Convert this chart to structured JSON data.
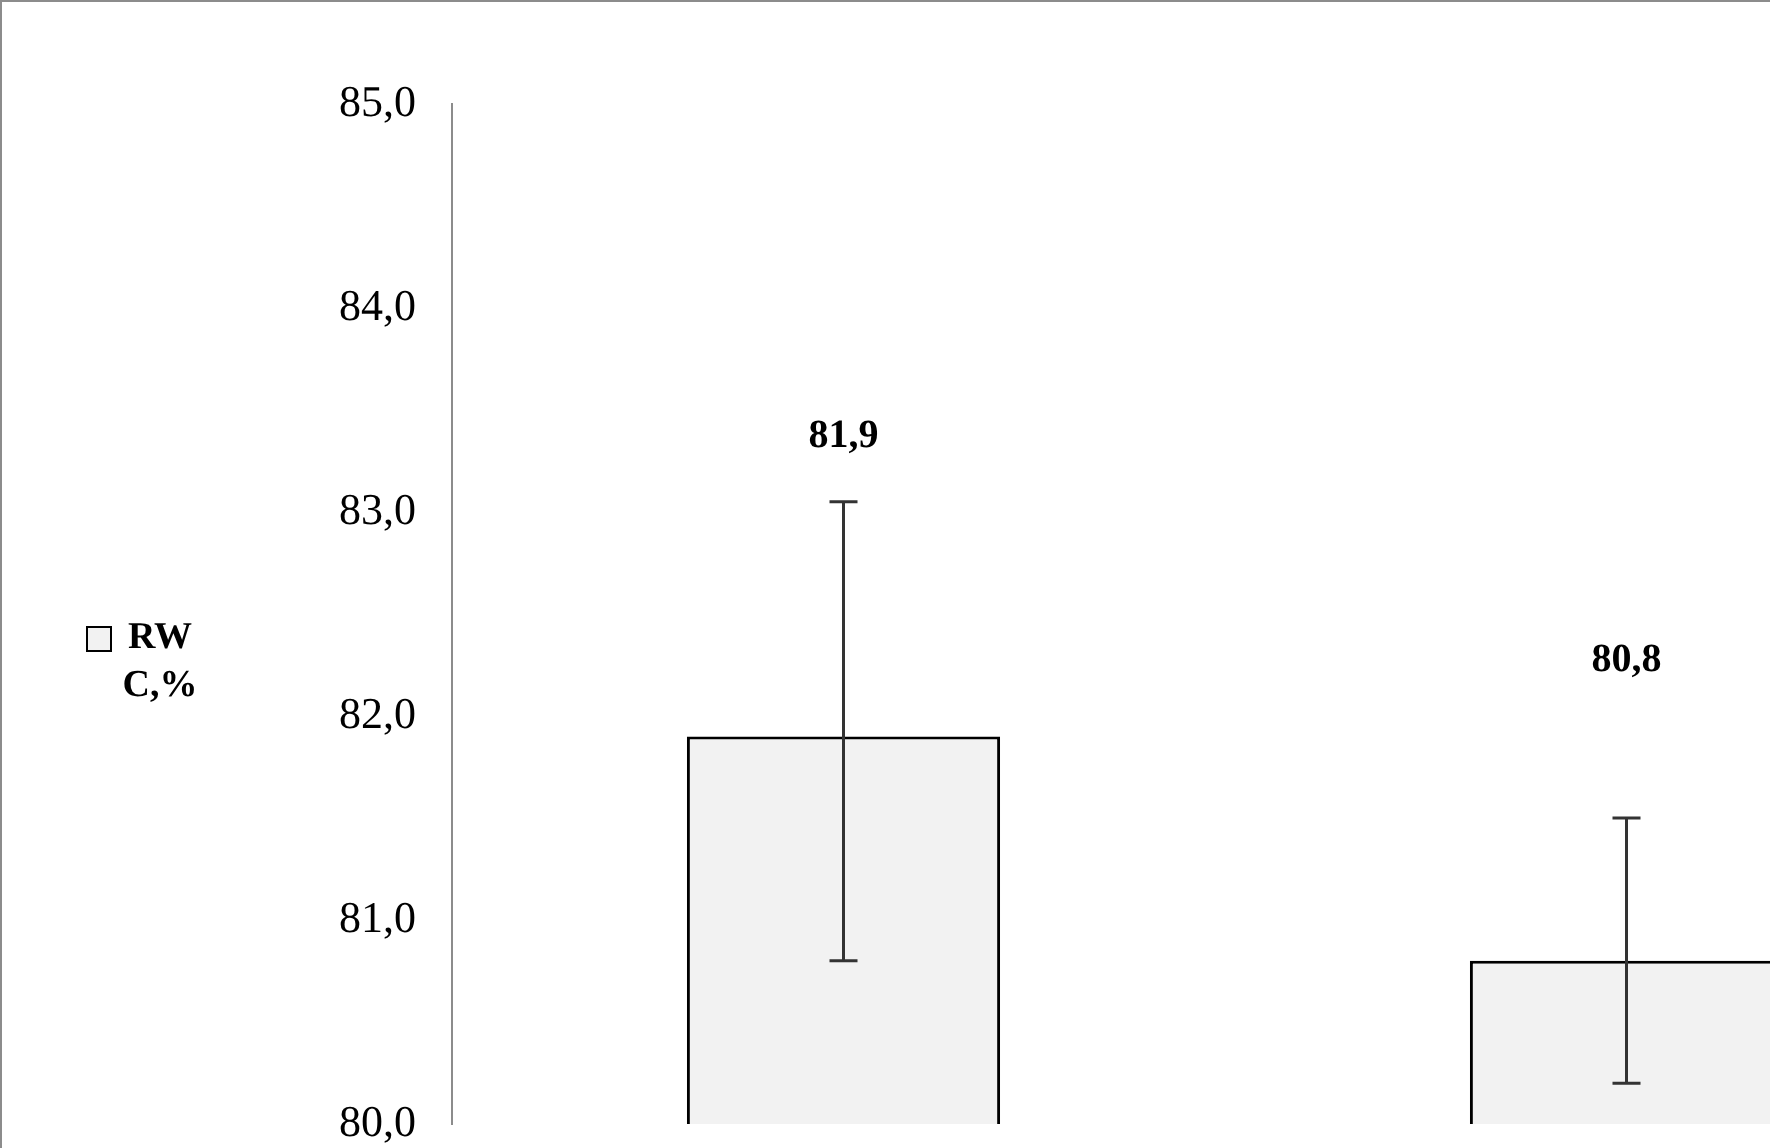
{
  "chart_data": {
    "type": "bar",
    "categories": [
      null,
      null
    ],
    "series": [
      {
        "name": "RW C,%",
        "color": "#f2f2f2",
        "values": [
          81.9,
          80.8
        ],
        "errors": [
          [
            80.8,
            83.05
          ],
          [
            80.2,
            81.5
          ]
        ]
      }
    ],
    "ylim": [
      80,
      85
    ],
    "yticks": [
      {
        "value": 80,
        "label": "80,0"
      },
      {
        "value": 81,
        "label": "81,0"
      },
      {
        "value": 82,
        "label": "82,0"
      },
      {
        "value": 83,
        "label": "83,0"
      },
      {
        "value": 84,
        "label": "84,0"
      },
      {
        "value": 85,
        "label": "85,0"
      }
    ],
    "value_labels": [
      "81,9",
      "80,8"
    ],
    "legend": "left"
  }
}
